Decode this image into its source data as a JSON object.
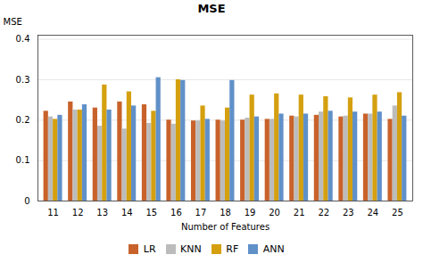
{
  "chart_data": {
    "type": "bar",
    "title": "MSE",
    "xlabel": "Number of Features",
    "ylabel": "MSE",
    "categories": [
      11,
      12,
      13,
      14,
      15,
      16,
      17,
      18,
      19,
      20,
      21,
      22,
      23,
      24,
      25
    ],
    "series": [
      {
        "name": "LR",
        "color": "#C8622A",
        "values": [
          0.222,
          0.245,
          0.23,
          0.245,
          0.238,
          0.2,
          0.198,
          0.2,
          0.2,
          0.202,
          0.21,
          0.212,
          0.208,
          0.215,
          0.202
        ]
      },
      {
        "name": "KNN",
        "color": "#BCBCBC",
        "values": [
          0.208,
          0.225,
          0.185,
          0.178,
          0.192,
          0.19,
          0.198,
          0.198,
          0.205,
          0.202,
          0.208,
          0.22,
          0.21,
          0.215,
          0.235
        ]
      },
      {
        "name": "RF",
        "color": "#D4A010",
        "values": [
          0.202,
          0.225,
          0.287,
          0.27,
          0.222,
          0.3,
          0.235,
          0.23,
          0.262,
          0.265,
          0.262,
          0.258,
          0.255,
          0.262,
          0.268
        ]
      },
      {
        "name": "ANN",
        "color": "#6090C8",
        "values": [
          0.212,
          0.238,
          0.225,
          0.235,
          0.305,
          0.298,
          0.202,
          0.298,
          0.208,
          0.215,
          0.215,
          0.222,
          0.22,
          0.22,
          0.21
        ]
      }
    ],
    "ylim": [
      0,
      0.41
    ],
    "yticks": [
      0,
      0.1,
      0.2,
      0.3,
      0.4
    ],
    "grid": true,
    "legend": "bottom"
  }
}
